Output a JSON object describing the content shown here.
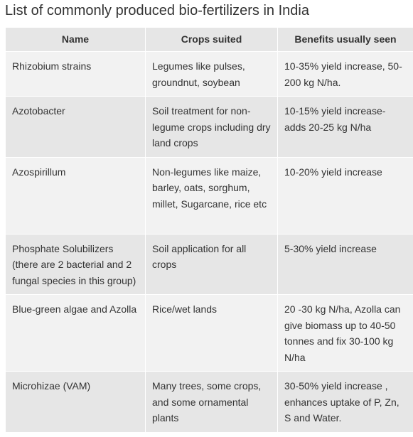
{
  "title": "List of commonly produced bio-fertilizers in India",
  "table": {
    "headers": [
      "Name",
      "Crops suited",
      "Benefits usually seen"
    ],
    "rows": [
      {
        "name": "Rhizobium strains",
        "crops": "Legumes like pulses, groundnut, soybean",
        "benefits": "10-35% yield increase, 50-200 kg N/ha."
      },
      {
        "name": "Azotobacter",
        "crops": "Soil treatment for non-legume crops including dry land crops",
        "benefits": "10-15% yield increase- adds 20-25 kg N/ha"
      },
      {
        "name": "Azospirillum",
        "crops": "Non-legumes like maize, barley, oats, sorghum, millet, Sugarcane, rice etc",
        "benefits": "10-20% yield increase"
      },
      {
        "name": "Phosphate Solubilizers (there are 2 bacterial and 2 fungal species in this group)",
        "crops": "Soil application for all crops",
        "benefits": "5-30% yield increase"
      },
      {
        "name": "Blue-green algae and Azolla",
        "crops": "Rice/wet lands",
        "benefits": "20 -30 kg N/ha, Azolla can give biomass up to 40-50 tonnes and fix 30-100 kg N/ha"
      },
      {
        "name": "Microhizae (VAM)",
        "crops": "Many trees, some crops, and some ornamental plants",
        "benefits": "30-50% yield increase , enhances uptake of P, Zn, S and Water."
      }
    ]
  }
}
